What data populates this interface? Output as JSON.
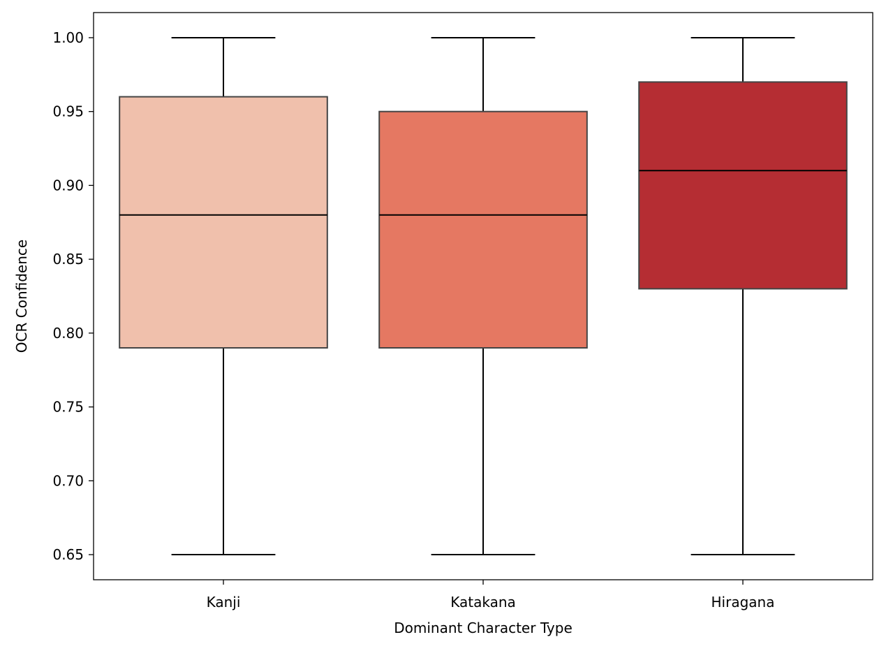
{
  "chart_data": {
    "type": "box",
    "title": "",
    "xlabel": "Dominant Character Type",
    "ylabel": "OCR Confidence",
    "ylim": [
      0.633,
      1.017
    ],
    "yticks": [
      0.65,
      0.7,
      0.75,
      0.8,
      0.85,
      0.9,
      0.95,
      1.0
    ],
    "ytick_labels": [
      "0.65",
      "0.70",
      "0.75",
      "0.80",
      "0.85",
      "0.90",
      "0.95",
      "1.00"
    ],
    "grid": false,
    "legend": "none",
    "categories": [
      "Kanji",
      "Katakana",
      "Hiragana"
    ],
    "boxes": [
      {
        "category": "Kanji",
        "min": 0.65,
        "q1": 0.79,
        "median": 0.88,
        "q3": 0.96,
        "max": 1.0,
        "color": "#f0c0ac"
      },
      {
        "category": "Katakana",
        "min": 0.65,
        "q1": 0.79,
        "median": 0.88,
        "q3": 0.95,
        "max": 1.0,
        "color": "#e57862"
      },
      {
        "category": "Hiragana",
        "min": 0.65,
        "q1": 0.83,
        "median": 0.91,
        "q3": 0.97,
        "max": 1.0,
        "color": "#b52d33"
      }
    ],
    "colors": {
      "box_edge": "#444444",
      "whisker": "#000000",
      "median": "#000000",
      "axes": "#000000"
    }
  }
}
